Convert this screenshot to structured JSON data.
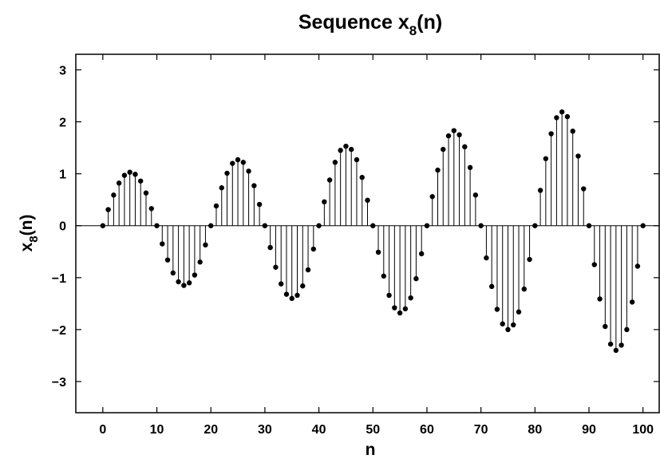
{
  "chart_data": {
    "type": "stem",
    "title": {
      "main": "Sequence x",
      "sub": "8",
      "tail": "(n)"
    },
    "xlabel": "n",
    "ylabel": {
      "main": "x",
      "sub": "8",
      "tail": "(n)"
    },
    "xlim": [
      -5,
      103
    ],
    "ylim": [
      -3.6,
      3.3
    ],
    "xticks": [
      0,
      10,
      20,
      30,
      40,
      50,
      60,
      70,
      80,
      90,
      100
    ],
    "xtick_labels": [
      "0",
      "10",
      "20",
      "30",
      "40",
      "50",
      "60",
      "70",
      "80",
      "90",
      "100"
    ],
    "yticks": [
      -3,
      -2,
      -1,
      0,
      1,
      2,
      3
    ],
    "ytick_labels": [
      "−3",
      "−2",
      "−1",
      "0",
      "1",
      "2",
      "3"
    ],
    "grid": false,
    "marker_color": "#000000",
    "n": [
      0,
      1,
      2,
      3,
      4,
      5,
      6,
      7,
      8,
      9,
      10,
      11,
      12,
      13,
      14,
      15,
      16,
      17,
      18,
      19,
      20,
      21,
      22,
      23,
      24,
      25,
      26,
      27,
      28,
      29,
      30,
      31,
      32,
      33,
      34,
      35,
      36,
      37,
      38,
      39,
      40,
      41,
      42,
      43,
      44,
      45,
      46,
      47,
      48,
      49,
      50,
      51,
      52,
      53,
      54,
      55,
      56,
      57,
      58,
      59,
      60,
      61,
      62,
      63,
      64,
      65,
      66,
      67,
      68,
      69,
      70,
      71,
      72,
      73,
      74,
      75,
      76,
      77,
      78,
      79,
      80,
      81,
      82,
      83,
      84,
      85,
      86,
      87,
      88,
      89,
      90,
      91,
      92,
      93,
      94,
      95,
      96,
      97,
      98,
      99,
      100
    ],
    "values": [
      0,
      0.31,
      0.59,
      0.82,
      0.97,
      1.03,
      0.99,
      0.86,
      0.63,
      0.33,
      0,
      -0.35,
      -0.66,
      -0.91,
      -1.08,
      -1.15,
      -1.1,
      -0.95,
      -0.7,
      -0.37,
      0,
      0.38,
      0.73,
      1.01,
      1.2,
      1.27,
      1.22,
      1.05,
      0.77,
      0.41,
      0,
      -0.42,
      -0.8,
      -1.12,
      -1.32,
      -1.4,
      -1.34,
      -1.16,
      -0.85,
      -0.45,
      0,
      0.46,
      0.88,
      1.22,
      1.45,
      1.53,
      1.47,
      1.27,
      0.93,
      0.49,
      0,
      -0.51,
      -0.97,
      -1.34,
      -1.58,
      -1.68,
      -1.6,
      -1.39,
      -1.02,
      -0.54,
      0,
      0.56,
      1.07,
      1.47,
      1.73,
      1.83,
      1.75,
      1.52,
      1.12,
      0.59,
      0,
      -0.62,
      -1.17,
      -1.61,
      -1.89,
      -2.0,
      -1.91,
      -1.66,
      -1.22,
      -0.65,
      0,
      0.68,
      1.29,
      1.77,
      2.08,
      2.19,
      2.1,
      1.82,
      1.34,
      0.71,
      0,
      -0.75,
      -1.41,
      -1.94,
      -2.28,
      -2.4,
      -2.3,
      -2.0,
      -1.47,
      -0.78,
      0
    ]
  }
}
